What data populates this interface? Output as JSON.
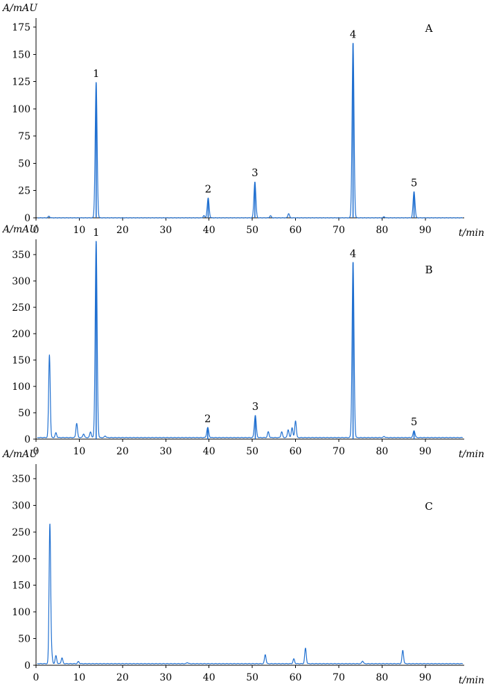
{
  "trace_color": "#1f6fd0",
  "chart_data": [
    {
      "type": "line",
      "panel_label": "A",
      "ylabel": "A/mAU",
      "xlabel": "t/min",
      "xlim": [
        0,
        99
      ],
      "ylim": [
        0,
        180
      ],
      "xticks": [
        0,
        10,
        20,
        30,
        40,
        50,
        60,
        70,
        80,
        90
      ],
      "yticks": [
        0,
        25,
        50,
        75,
        100,
        125,
        150,
        175
      ],
      "baseline": 0,
      "peaks": [
        {
          "label": "1",
          "x": 13.9,
          "y": 124
        },
        {
          "label": "2",
          "x": 39.8,
          "y": 18
        },
        {
          "label": "3",
          "x": 50.6,
          "y": 33
        },
        {
          "label": "4",
          "x": 73.3,
          "y": 160
        },
        {
          "label": "5",
          "x": 87.4,
          "y": 24
        }
      ],
      "minor_peaks": [
        {
          "x": 3.0,
          "y": 1.5
        },
        {
          "x": 38.8,
          "y": 2
        },
        {
          "x": 54.2,
          "y": 2
        },
        {
          "x": 58.4,
          "y": 4
        },
        {
          "x": 80.5,
          "y": 1
        }
      ]
    },
    {
      "type": "line",
      "panel_label": "B",
      "ylabel": "A/mAU",
      "xlabel": "t/min",
      "xlim": [
        0,
        99
      ],
      "ylim": [
        0,
        380
      ],
      "xticks": [
        0,
        10,
        20,
        30,
        40,
        50,
        60,
        70,
        80,
        90
      ],
      "yticks": [
        0,
        50,
        100,
        150,
        200,
        250,
        300,
        350
      ],
      "baseline": 3,
      "peaks": [
        {
          "label": "1",
          "x": 13.9,
          "y": 375
        },
        {
          "label": "2",
          "x": 39.7,
          "y": 22
        },
        {
          "label": "3",
          "x": 50.7,
          "y": 45
        },
        {
          "label": "4",
          "x": 73.3,
          "y": 335
        },
        {
          "label": "5",
          "x": 87.4,
          "y": 16
        }
      ],
      "minor_peaks": [
        {
          "x": 3.1,
          "y": 160
        },
        {
          "x": 4.6,
          "y": 12
        },
        {
          "x": 9.4,
          "y": 30
        },
        {
          "x": 11.0,
          "y": 10
        },
        {
          "x": 12.6,
          "y": 14
        },
        {
          "x": 16.0,
          "y": 6
        },
        {
          "x": 53.7,
          "y": 14
        },
        {
          "x": 56.8,
          "y": 14
        },
        {
          "x": 58.3,
          "y": 18
        },
        {
          "x": 59.2,
          "y": 22
        },
        {
          "x": 60.0,
          "y": 35
        },
        {
          "x": 80.5,
          "y": 5
        }
      ]
    },
    {
      "type": "line",
      "panel_label": "C",
      "ylabel": "A/mAU",
      "xlabel": "t/min",
      "xlim": [
        0,
        99
      ],
      "ylim": [
        0,
        380
      ],
      "xticks": [
        0,
        10,
        20,
        30,
        40,
        50,
        60,
        70,
        80,
        90
      ],
      "yticks": [
        0,
        50,
        100,
        150,
        200,
        250,
        300,
        350
      ],
      "baseline": 3,
      "peaks": [],
      "minor_peaks": [
        {
          "x": 3.2,
          "y": 265
        },
        {
          "x": 3.6,
          "y": 20
        },
        {
          "x": 4.6,
          "y": 18
        },
        {
          "x": 6.0,
          "y": 14
        },
        {
          "x": 9.8,
          "y": 7
        },
        {
          "x": 35.0,
          "y": 5
        },
        {
          "x": 53.0,
          "y": 20
        },
        {
          "x": 59.6,
          "y": 12
        },
        {
          "x": 62.3,
          "y": 32
        },
        {
          "x": 75.5,
          "y": 8
        },
        {
          "x": 84.8,
          "y": 28
        }
      ]
    }
  ]
}
